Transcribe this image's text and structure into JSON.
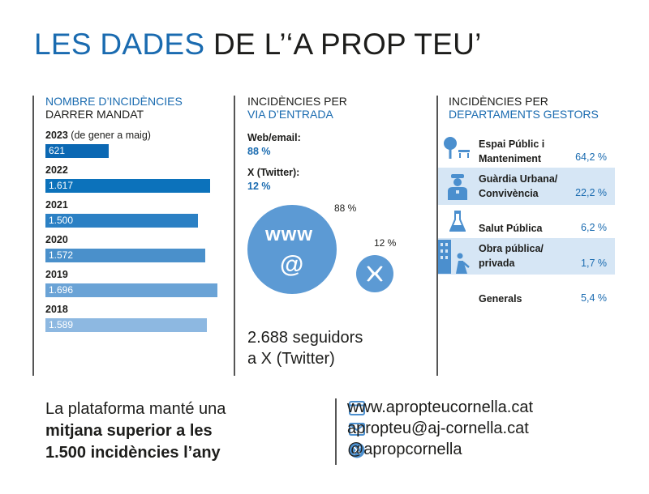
{
  "title": {
    "part1": "LES DADES",
    "part2": "DE L’‘A PROP TEU’"
  },
  "chart_data": [
    {
      "type": "bar",
      "title": "NOMBRE D’INCIDÈNCIES DARRER MANDAT",
      "title_line1": "NOMBRE D’INCIDÈNCIES",
      "title_line2": "DARRER MANDAT",
      "orientation": "horizontal",
      "categories": [
        "2023",
        "2022",
        "2021",
        "2020",
        "2019",
        "2018"
      ],
      "category_notes": [
        "(de gener a maig)",
        "",
        "",
        "",
        "",
        ""
      ],
      "values": [
        621,
        1617,
        1500,
        1572,
        1696,
        1589
      ],
      "value_labels": [
        "621",
        "1.617",
        "1.500",
        "1.572",
        "1.696",
        "1.589"
      ],
      "xlim": [
        0,
        1700
      ],
      "bar_colors": [
        "#0b68b3",
        "#0c72bb",
        "#2b80c4",
        "#4a90cb",
        "#6aa3d6",
        "#8db8e1"
      ],
      "grid": false
    },
    {
      "type": "bubble",
      "title": "INCIDÈNCIES PER VIA D’ENTRADA",
      "title_line1": "INCIDÈNCIES PER",
      "title_line2": "VIA D’ENTRADA",
      "series": [
        {
          "name": "Web/email:",
          "value": 88,
          "label": "88 %",
          "icon": "www-at-icon"
        },
        {
          "name": "X (Twitter):",
          "value": 12,
          "label": "12 %",
          "icon": "x-logo-icon"
        }
      ],
      "color": "#5c9ad4"
    },
    {
      "type": "table",
      "title": "INCIDÈNCIES PER DEPARTAMENTS GESTORS",
      "title_line1": "INCIDÈNCIES PER",
      "title_line2": "DEPARTAMENTS GESTORS",
      "rows": [
        {
          "name_line1": "Espai Públic i",
          "name_line2": "Manteniment",
          "value": 64.2,
          "label": "64,2 %",
          "icon": "tree-bench-icon",
          "shaded": false
        },
        {
          "name_line1": "Guàrdia Urbana/",
          "name_line2": "Convivència",
          "value": 22.2,
          "label": "22,2 %",
          "icon": "police-officer-icon",
          "shaded": true
        },
        {
          "name_line1": "Salut Pública",
          "name_line2": "",
          "value": 6.2,
          "label": "6,2 %",
          "icon": "lab-flask-icon",
          "shaded": false
        },
        {
          "name_line1": "Obra pública/",
          "name_line2": "privada",
          "value": 1.7,
          "label": "1,7 %",
          "icon": "construction-worker-icon",
          "shaded": true
        },
        {
          "name_line1": "Generals",
          "name_line2": "",
          "value": 5.4,
          "label": "5,4 %",
          "icon": "",
          "shaded": false
        }
      ]
    }
  ],
  "followers": {
    "line1": "2.688 seguidors",
    "line2": "a X (Twitter)"
  },
  "footer": {
    "line1": "La plataforma manté una",
    "line2": "mitjana superior a les",
    "line3": "1.500 incidències l’any"
  },
  "contacts": [
    {
      "icon": "browser-window-icon",
      "text": "www.apropteucornella.cat"
    },
    {
      "icon": "envelope-icon",
      "text": "apropteu@aj-cornella.cat"
    },
    {
      "icon": "x-logo-icon",
      "text": "@apropcornella"
    }
  ],
  "colors": {
    "accent": "#1a6bb0",
    "bubble": "#5c9ad4",
    "shade": "#d6e6f5",
    "icon": "#4b8fce"
  }
}
